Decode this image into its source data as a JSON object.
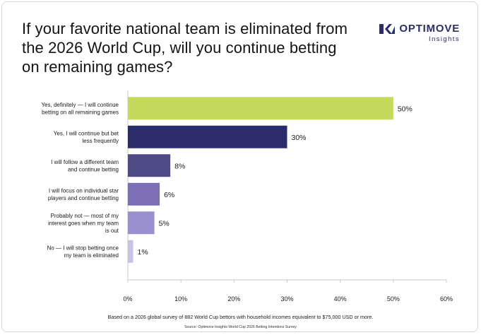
{
  "title": "If your favorite national team is eliminated from the 2026 World Cup, will you continue betting on remaining games?",
  "brand": {
    "name": "OPTIMOVE",
    "sub": "Insights",
    "color": "#2b2d6b"
  },
  "note": "Based on a 2026 global survey of 882 World Cup bettors with household incomes equivalent to $75,000 USD or more.",
  "source": "Source: Optimove Insights World Cup 2026 Betting Intentions Survey",
  "chart_data": {
    "type": "bar",
    "orientation": "horizontal",
    "categories": [
      [
        "Yes, definitely — I will continue",
        "betting on all remaining games"
      ],
      [
        "Yes, I will continue but bet",
        "less frequently"
      ],
      [
        "I will follow a different team",
        "and continue betting"
      ],
      [
        "I will focus on individual star",
        "players and continue betting"
      ],
      [
        "Probably not — most of my",
        "interest goes when my team",
        "is out"
      ],
      [
        "No — I will stop betting once",
        "my team is eliminated"
      ]
    ],
    "values": [
      50,
      30,
      8,
      6,
      5,
      1
    ],
    "value_labels": [
      "50%",
      "30%",
      "8%",
      "6%",
      "5%",
      "1%"
    ],
    "colors": [
      "#c5d95a",
      "#2b2d6b",
      "#4e4a86",
      "#7c6fb8",
      "#9b90cf",
      "#c8c3e6"
    ],
    "xlim": [
      0,
      60
    ],
    "xticks": [
      0,
      10,
      20,
      30,
      40,
      50,
      60
    ],
    "xtick_labels": [
      "0%",
      "10%",
      "20%",
      "30%",
      "40%",
      "50%",
      "60%"
    ],
    "grid": false
  }
}
